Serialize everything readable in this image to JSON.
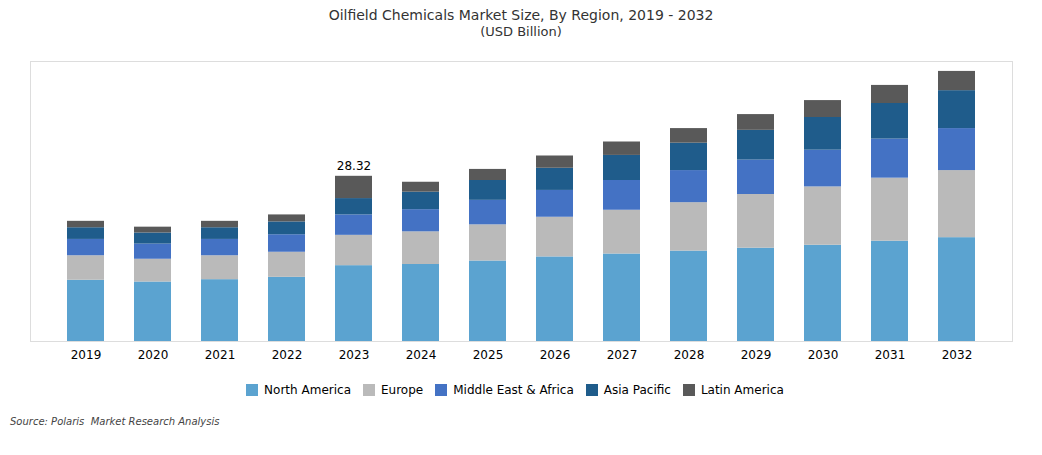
{
  "chart_data": {
    "type": "bar",
    "stacked": true,
    "title": "Oilfield Chemicals Market Size, By Region, 2019 - 2032",
    "subtitle": "(USD Billion)",
    "categories": [
      "2019",
      "2020",
      "2021",
      "2022",
      "2023",
      "2024",
      "2025",
      "2026",
      "2027",
      "2028",
      "2029",
      "2030",
      "2031",
      "2032"
    ],
    "series": [
      {
        "name": "North America",
        "color": "#5BA3D0",
        "values": [
          10.5,
          10.2,
          10.6,
          11.0,
          13.0,
          13.2,
          13.8,
          14.5,
          15.0,
          15.5,
          16.0,
          16.5,
          17.2,
          17.8
        ]
      },
      {
        "name": "Europe",
        "color": "#BABABA",
        "values": [
          4.2,
          3.9,
          4.1,
          4.3,
          5.2,
          5.6,
          6.2,
          6.8,
          7.5,
          8.3,
          9.2,
          10.0,
          10.8,
          11.5
        ]
      },
      {
        "name": "Middle East & Africa",
        "color": "#4472C4",
        "values": [
          2.8,
          2.6,
          2.8,
          3.0,
          3.5,
          3.8,
          4.2,
          4.6,
          5.1,
          5.5,
          5.9,
          6.3,
          6.7,
          7.2
        ]
      },
      {
        "name": "Asia Pacific",
        "color": "#1F5C8B",
        "values": [
          2.0,
          1.9,
          2.0,
          2.2,
          2.8,
          3.0,
          3.4,
          3.8,
          4.3,
          4.7,
          5.1,
          5.6,
          6.1,
          6.5
        ]
      },
      {
        "name": "Latin America",
        "color": "#595959",
        "values": [
          1.1,
          1.0,
          1.1,
          1.2,
          3.82,
          1.7,
          1.9,
          2.1,
          2.3,
          2.5,
          2.7,
          2.9,
          3.1,
          3.3
        ]
      }
    ],
    "ylim": [
      0,
      48
    ],
    "tick_labels": "x",
    "grid": false,
    "legend": "bottom",
    "annotations": [
      {
        "text": "28.32",
        "x": "2023",
        "y": 28.32
      }
    ],
    "source": "Source: Polaris  Market Research Analysis"
  }
}
